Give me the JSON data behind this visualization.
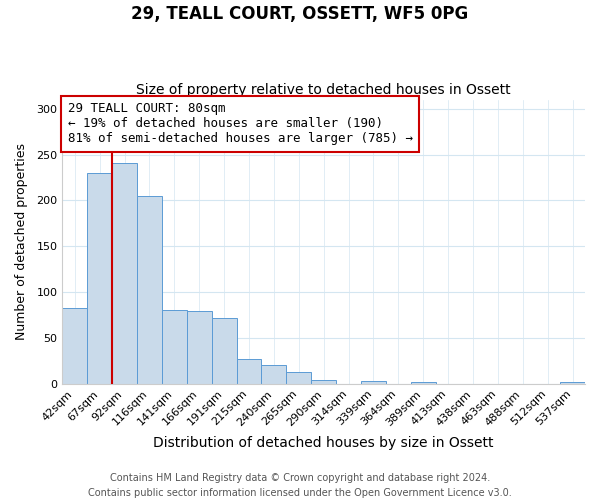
{
  "title": "29, TEALL COURT, OSSETT, WF5 0PG",
  "subtitle": "Size of property relative to detached houses in Ossett",
  "xlabel": "Distribution of detached houses by size in Ossett",
  "ylabel": "Number of detached properties",
  "bar_labels": [
    "42sqm",
    "67sqm",
    "92sqm",
    "116sqm",
    "141sqm",
    "166sqm",
    "191sqm",
    "215sqm",
    "240sqm",
    "265sqm",
    "290sqm",
    "314sqm",
    "339sqm",
    "364sqm",
    "389sqm",
    "413sqm",
    "438sqm",
    "463sqm",
    "488sqm",
    "512sqm",
    "537sqm"
  ],
  "bar_values": [
    83,
    230,
    241,
    205,
    80,
    79,
    72,
    27,
    20,
    13,
    4,
    0,
    3,
    0,
    2,
    0,
    0,
    0,
    0,
    0,
    2
  ],
  "bar_color": "#c9daea",
  "bar_edge_color": "#5b9bd5",
  "vline_x_bar_index": 1,
  "annotation_line1": "29 TEALL COURT: 80sqm",
  "annotation_line2": "← 19% of detached houses are smaller (190)",
  "annotation_line3": "81% of semi-detached houses are larger (785) →",
  "annotation_box_color": "#ffffff",
  "annotation_box_edge": "#cc0000",
  "vline_color": "#cc0000",
  "ylim": [
    0,
    310
  ],
  "yticks": [
    0,
    50,
    100,
    150,
    200,
    250,
    300
  ],
  "grid_color": "#d4e6f1",
  "footer_line1": "Contains HM Land Registry data © Crown copyright and database right 2024.",
  "footer_line2": "Contains public sector information licensed under the Open Government Licence v3.0.",
  "title_fontsize": 12,
  "subtitle_fontsize": 10,
  "xlabel_fontsize": 10,
  "ylabel_fontsize": 9,
  "tick_fontsize": 8,
  "annotation_fontsize": 9,
  "footer_fontsize": 7
}
